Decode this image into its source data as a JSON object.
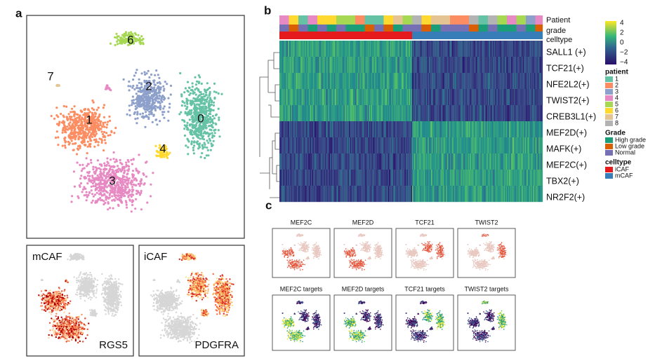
{
  "panel_a": {
    "label": "a",
    "clusters": [
      "6",
      "7",
      "2",
      "1",
      "0",
      "4",
      "3"
    ],
    "subpanels": [
      {
        "title": "mCAF",
        "gene": "RGS5"
      },
      {
        "title": "iCAF",
        "gene": "PDGFRA"
      }
    ]
  },
  "panel_b": {
    "label": "b",
    "annotation_rows": [
      "Patient",
      "grade",
      "celltype"
    ],
    "genes": [
      "SALL1 (+)",
      "TCF21(+)",
      "NFE2L2(+)",
      "TWIST2(+)",
      "CREB3L1(+)",
      "MEF2D(+)",
      "MAFK(+)",
      "MEF2C(+)",
      "TBX2(+)",
      "NR2F2(+)"
    ],
    "colorbar_ticks": [
      "4",
      "2",
      "0",
      "−2",
      "−4"
    ],
    "legend": [
      {
        "title": "patient",
        "items": [
          "1",
          "2",
          "3",
          "4",
          "5",
          "6",
          "7",
          "8"
        ]
      },
      {
        "title": "Grade",
        "items": [
          "High grade",
          "Low grade",
          "Normal"
        ]
      },
      {
        "title": "celltype",
        "items": [
          "iCAF",
          "mCAF"
        ]
      }
    ]
  },
  "panel_c": {
    "label": "c",
    "top_titles": [
      "MEF2C",
      "MEF2D",
      "TCF21",
      "TWIST2"
    ],
    "bottom_titles": [
      "MEF2C targets",
      "MEF2D targets",
      "TCF21 targets",
      "TWIST2 targets"
    ]
  }
}
